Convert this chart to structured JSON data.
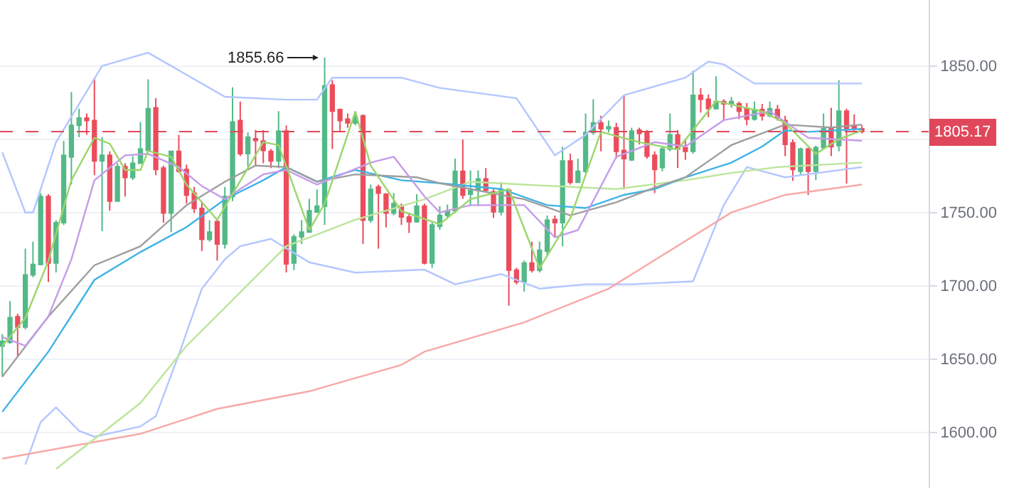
{
  "chart_data": {
    "type": "candlestick",
    "categories": [
      null,
      null,
      null,
      null,
      null,
      null,
      null,
      null,
      null,
      null,
      null,
      null,
      null,
      null,
      null,
      null,
      null,
      null,
      null,
      null,
      null,
      null,
      null,
      null,
      null,
      null,
      null,
      null,
      null,
      null,
      null,
      null,
      null,
      null,
      null,
      null,
      null,
      null,
      null,
      null,
      null,
      null,
      null,
      null,
      null,
      null,
      null,
      null,
      null,
      null,
      null,
      null,
      null,
      null,
      null,
      null,
      null,
      null,
      null,
      null,
      null,
      null,
      null,
      null,
      null,
      null,
      null,
      null,
      null,
      null,
      null,
      null,
      null,
      null,
      null,
      null,
      null,
      null,
      null,
      null,
      null,
      null,
      null,
      null,
      null,
      null,
      null,
      null,
      null,
      null,
      null,
      null,
      null,
      null,
      null,
      null,
      null,
      null,
      null,
      null,
      null,
      null,
      null,
      null,
      null,
      null,
      null,
      null,
      null,
      null,
      null,
      null,
      null
    ],
    "ohlc": [
      [
        1658.8,
        1667,
        1637.8,
        1662.1
      ],
      [
        1661.4,
        1689.6,
        1660.5,
        1678.3
      ],
      [
        1678.9,
        1680.9,
        1651.7,
        1671.8
      ],
      [
        1671.8,
        1725.3,
        1670.2,
        1707.4
      ],
      [
        1707.4,
        1730.1,
        1705.8,
        1714.6
      ],
      [
        1714.6,
        1763.2,
        1714,
        1760.9
      ],
      [
        1760.9,
        1762.5,
        1702.6,
        1715.5
      ],
      [
        1715.5,
        1744.7,
        1709.1,
        1743.1
      ],
      [
        1743.1,
        1798.8,
        1741.5,
        1789.1
      ],
      [
        1787.8,
        1832.2,
        1769,
        1809.5
      ],
      [
        1809.5,
        1820.8,
        1801.4,
        1814.4
      ],
      [
        1814.4,
        1817.6,
        1803,
        1812.7
      ],
      [
        1812.7,
        1841.9,
        1775.5,
        1785.2
      ],
      [
        1785.2,
        1801.4,
        1737.2,
        1789.1
      ],
      [
        1789.1,
        1791.7,
        1751.2,
        1757.7
      ],
      [
        1757.7,
        1783.6,
        1757.7,
        1781.3
      ],
      [
        1781.3,
        1783.6,
        1760.9,
        1773.9
      ],
      [
        1773.9,
        1788.4,
        1772.2,
        1783.6
      ],
      [
        1783.6,
        1811.8,
        1783.6,
        1793.3
      ],
      [
        1792.3,
        1840.9,
        1791.7,
        1820.8
      ],
      [
        1821.5,
        1828,
        1775.5,
        1779.4
      ],
      [
        1780.3,
        1782,
        1743.1,
        1749.6
      ],
      [
        1749.6,
        1791.7,
        1736.6,
        1791.7
      ],
      [
        1791.7,
        1803,
        1777.1,
        1778.1
      ],
      [
        1779.4,
        1782.6,
        1756,
        1761.9
      ],
      [
        1763.2,
        1767.4,
        1749.6,
        1752.8
      ],
      [
        1752.8,
        1757.7,
        1723.6,
        1731.7
      ],
      [
        1731.7,
        1744.7,
        1730.1,
        1736.6
      ],
      [
        1743.8,
        1746,
        1717.2,
        1728.5
      ],
      [
        1728.5,
        1767.4,
        1725.3,
        1760.9
      ],
      [
        1760.9,
        1835.4,
        1757.7,
        1811.8
      ],
      [
        1812.7,
        1825.7,
        1788.4,
        1790.1
      ],
      [
        1790.1,
        1804.6,
        1781.3,
        1801.4
      ],
      [
        1800.4,
        1806.3,
        1782,
        1799.1
      ],
      [
        1798.8,
        1806.3,
        1783.6,
        1792.3
      ],
      [
        1791.7,
        1793.3,
        1780.3,
        1785.2
      ],
      [
        1785.2,
        1819.2,
        1780.3,
        1805.6
      ],
      [
        1805.6,
        1809.5,
        1709.1,
        1714.9
      ],
      [
        1715.5,
        1735,
        1710.7,
        1733.4
      ],
      [
        1733.4,
        1744.7,
        1728.5,
        1736.6
      ],
      [
        1736.6,
        1759.3,
        1736.6,
        1751.2
      ],
      [
        1750.4,
        1765.8,
        1749.6,
        1754.4
      ],
      [
        1754.4,
        1855.66,
        1741.5,
        1836.4
      ],
      [
        1837,
        1840.3,
        1793.3,
        1819.2
      ],
      [
        1820.2,
        1820.8,
        1804.6,
        1812.7
      ],
      [
        1813.7,
        1817.6,
        1807.9,
        1811.1
      ],
      [
        1811.1,
        1819.2,
        1809.5,
        1815
      ],
      [
        1816,
        1817,
        1728.5,
        1744.7
      ],
      [
        1744.7,
        1769,
        1743.1,
        1765.8
      ],
      [
        1767.4,
        1769,
        1725.3,
        1763.2
      ],
      [
        1762.5,
        1763.2,
        1739.8,
        1749.6
      ],
      [
        1749.6,
        1763.2,
        1748,
        1756
      ],
      [
        1754.4,
        1756,
        1741.5,
        1747
      ],
      [
        1747,
        1749.6,
        1736,
        1743.7
      ],
      [
        1743.7,
        1762.5,
        1743.1,
        1754.4
      ],
      [
        1754.4,
        1756,
        1714.6,
        1715.5
      ],
      [
        1715.5,
        1743.1,
        1712.3,
        1741.5
      ],
      [
        1740.5,
        1754.4,
        1738.2,
        1748
      ],
      [
        1748,
        1755.4,
        1746.3,
        1751.2
      ],
      [
        1751.2,
        1786.8,
        1749.6,
        1778.1
      ],
      [
        1778.1,
        1799.8,
        1759.3,
        1761.9
      ],
      [
        1762.5,
        1778.8,
        1754.4,
        1765.1
      ],
      [
        1765.1,
        1778.8,
        1754.4,
        1772.9
      ],
      [
        1772.9,
        1780.3,
        1764.1,
        1765.1
      ],
      [
        1764.1,
        1765.8,
        1746.3,
        1750.5
      ],
      [
        1750.5,
        1770.6,
        1748,
        1765.8
      ],
      [
        1765.1,
        1765.8,
        1686.4,
        1710.7
      ],
      [
        1710.7,
        1712.3,
        1701,
        1702.6
      ],
      [
        1702.6,
        1717.2,
        1696.1,
        1715.5
      ],
      [
        1715.5,
        1730.1,
        1709.1,
        1710.7
      ],
      [
        1710.7,
        1730.1,
        1709.1,
        1724.3
      ],
      [
        1723.6,
        1747.9,
        1720.4,
        1744.7
      ],
      [
        1745.3,
        1747.9,
        1733.4,
        1743.1
      ],
      [
        1743.1,
        1794.9,
        1726.9,
        1785.2
      ],
      [
        1785.2,
        1790.1,
        1769,
        1770.6
      ],
      [
        1770.6,
        1786.8,
        1770.6,
        1778.1
      ],
      [
        1778.1,
        1817.6,
        1777.1,
        1804.6
      ],
      [
        1804.6,
        1827.3,
        1803,
        1811.1
      ],
      [
        1811.1,
        1816,
        1791.7,
        1807.2
      ],
      [
        1807.2,
        1812.7,
        1804.6,
        1808.5
      ],
      [
        1807.9,
        1811.1,
        1786.8,
        1791.7
      ],
      [
        1792.3,
        1829.9,
        1765.8,
        1786.8
      ],
      [
        1785.9,
        1807.9,
        1785.2,
        1805.6
      ],
      [
        1806.3,
        1807.9,
        1796.5,
        1804
      ],
      [
        1804.6,
        1806.3,
        1786.8,
        1788.4
      ],
      [
        1789.1,
        1791.7,
        1763.2,
        1779.4
      ],
      [
        1780.7,
        1794.9,
        1778.1,
        1793.3
      ],
      [
        1793.3,
        1817.6,
        1791.7,
        1803
      ],
      [
        1803,
        1806.3,
        1780.3,
        1793.3
      ],
      [
        1794.3,
        1799.8,
        1785.9,
        1791.7
      ],
      [
        1791.7,
        1846.8,
        1790.1,
        1829.9
      ],
      [
        1829.9,
        1834.8,
        1818.2,
        1827.3
      ],
      [
        1827.3,
        1830.6,
        1815,
        1820.8
      ],
      [
        1820.8,
        1842.9,
        1820.2,
        1825.7
      ],
      [
        1825.7,
        1827.3,
        1812.7,
        1824.1
      ],
      [
        1824.1,
        1828.9,
        1821.5,
        1825.7
      ],
      [
        1824.1,
        1825.7,
        1813.7,
        1819.2
      ],
      [
        1820.8,
        1824.7,
        1809.5,
        1813.7
      ],
      [
        1813.7,
        1825.7,
        1812.7,
        1820.2
      ],
      [
        1820.2,
        1824.1,
        1812.7,
        1816
      ],
      [
        1816,
        1825.7,
        1815,
        1820.8
      ],
      [
        1820.2,
        1823.4,
        1812.7,
        1814.4
      ],
      [
        1812.7,
        1816,
        1788.4,
        1796.5
      ],
      [
        1797.5,
        1799.8,
        1771.6,
        1779.4
      ],
      [
        1778.1,
        1794.3,
        1776.1,
        1793.3
      ],
      [
        1793.3,
        1794.3,
        1761.9,
        1778.1
      ],
      [
        1778.1,
        1795.6,
        1772.2,
        1794.3
      ],
      [
        1794.3,
        1817.6,
        1793.3,
        1807.2
      ],
      [
        1807.2,
        1821.5,
        1788.4,
        1794.9
      ],
      [
        1795.6,
        1840.3,
        1791.7,
        1819.2
      ],
      [
        1819.2,
        1820.8,
        1769.7,
        1807.2
      ],
      [
        1809.5,
        1817,
        1804.6,
        1807.2
      ],
      [
        1807.2,
        1809.5,
        1804,
        1805.17
      ]
    ],
    "colors": [
      "#53b987",
      "#53b987",
      "#eb4d5c",
      "#53b987",
      "#53b987",
      "#53b987",
      "#eb4d5c",
      "#53b987",
      "#53b987",
      "#53b987",
      "#53b987",
      "#eb4d5c",
      "#eb4d5c",
      "#53b987",
      "#eb4d5c",
      "#53b987",
      "#eb4d5c",
      "#53b987",
      "#53b987",
      "#53b987",
      "#eb4d5c",
      "#eb4d5c",
      "#53b987",
      "#eb4d5c",
      "#eb4d5c",
      "#eb4d5c",
      "#eb4d5c",
      "#53b987",
      "#eb4d5c",
      "#53b987",
      "#53b987",
      "#eb4d5c",
      "#53b987",
      "#eb4d5c",
      "#eb4d5c",
      "#eb4d5c",
      "#53b987",
      "#eb4d5c",
      "#53b987",
      "#53b987",
      "#53b987",
      "#53b987",
      "#53b987",
      "#eb4d5c",
      "#eb4d5c",
      "#eb4d5c",
      "#53b987",
      "#eb4d5c",
      "#53b987",
      "#eb4d5c",
      "#eb4d5c",
      "#53b987",
      "#eb4d5c",
      "#eb4d5c",
      "#53b987",
      "#eb4d5c",
      "#53b987",
      "#53b987",
      "#53b987",
      "#53b987",
      "#eb4d5c",
      "#53b987",
      "#53b987",
      "#eb4d5c",
      "#eb4d5c",
      "#53b987",
      "#eb4d5c",
      "#eb4d5c",
      "#53b987",
      "#eb4d5c",
      "#53b987",
      "#53b987",
      "#eb4d5c",
      "#53b987",
      "#eb4d5c",
      "#53b987",
      "#53b987",
      "#53b987",
      "#eb4d5c",
      "#53b987",
      "#eb4d5c",
      "#eb4d5c",
      "#53b987",
      "#eb4d5c",
      "#eb4d5c",
      "#eb4d5c",
      "#53b987",
      "#53b987",
      "#eb4d5c",
      "#eb4d5c",
      "#53b987",
      "#eb4d5c",
      "#eb4d5c",
      "#53b987",
      "#eb4d5c",
      "#53b987",
      "#eb4d5c",
      "#eb4d5c",
      "#53b987",
      "#eb4d5c",
      "#53b987",
      "#eb4d5c",
      "#eb4d5c",
      "#eb4d5c",
      "#53b987",
      "#eb4d5c",
      "#53b987",
      "#53b987",
      "#eb4d5c",
      "#53b987",
      "#eb4d5c",
      "#eb4d5c",
      "#eb4d5c"
    ],
    "series": [
      {
        "type": "line",
        "color": "#b3c6ff",
        "values": [
          1791,
          null,
          null,
          1750,
          1750,
          null,
          null,
          1798,
          null,
          null,
          null,
          null,
          null,
          1850,
          null,
          null,
          null,
          null,
          null,
          1859,
          null,
          null,
          null,
          null,
          null,
          null,
          null,
          null,
          null,
          1829,
          null,
          null,
          null,
          null,
          null,
          null,
          null,
          1827,
          null,
          null,
          null,
          1827,
          null,
          1842,
          null,
          null,
          null,
          null,
          null,
          null,
          null,
          null,
          1842,
          null,
          null,
          null,
          null,
          1835,
          null,
          null,
          null,
          null,
          null,
          null,
          null,
          null,
          null,
          1828,
          null,
          null,
          null,
          null,
          1789,
          null,
          null,
          null,
          1803,
          null,
          null,
          null,
          null,
          1830,
          null,
          null,
          null,
          null,
          null,
          null,
          null,
          1842,
          null,
          null,
          1853,
          null,
          1851,
          null,
          null,
          null,
          1838,
          null,
          null,
          null,
          null,
          null,
          null,
          null,
          null,
          null,
          null,
          null,
          null,
          null,
          1838
        ]
      },
      {
        "type": "line",
        "color": "#b3c6ff",
        "values": [
          null,
          null,
          null,
          1578,
          null,
          1607,
          null,
          1617,
          null,
          null,
          1601,
          null,
          1597,
          null,
          null,
          null,
          null,
          null,
          1604,
          null,
          1611,
          null,
          null,
          1653,
          null,
          null,
          1698,
          null,
          null,
          1718,
          null,
          1727,
          null,
          null,
          null,
          1732,
          null,
          null,
          null,
          null,
          1716,
          null,
          null,
          null,
          null,
          null,
          1709,
          null,
          null,
          null,
          null,
          null,
          null,
          null,
          null,
          1711,
          null,
          null,
          null,
          1701,
          null,
          null,
          null,
          null,
          null,
          1708,
          null,
          null,
          null,
          null,
          1698,
          null,
          null,
          null,
          null,
          null,
          1701,
          null,
          null,
          null,
          null,
          null,
          1701,
          null,
          null,
          null,
          null,
          null,
          null,
          null,
          1703,
          null,
          null,
          null,
          1755,
          null,
          null,
          1781,
          null,
          null,
          null,
          null,
          1774,
          null,
          null,
          null,
          null,
          null,
          null,
          null,
          null,
          null,
          1781
        ]
      },
      {
        "type": "line",
        "color": "#f7a9a7",
        "values": [
          1582,
          null,
          null,
          null,
          null,
          null,
          null,
          null,
          null,
          null,
          null,
          null,
          null,
          null,
          null,
          null,
          null,
          null,
          1599,
          null,
          null,
          null,
          null,
          null,
          null,
          null,
          null,
          null,
          1616,
          null,
          null,
          null,
          null,
          null,
          null,
          null,
          null,
          null,
          null,
          null,
          1628,
          null,
          null,
          null,
          null,
          null,
          null,
          null,
          null,
          null,
          null,
          null,
          1646,
          null,
          null,
          1655,
          null,
          null,
          null,
          null,
          null,
          null,
          null,
          null,
          null,
          null,
          null,
          null,
          1675,
          null,
          null,
          null,
          null,
          null,
          null,
          null,
          null,
          null,
          null,
          1698,
          null,
          null,
          null,
          1711,
          null,
          null,
          null,
          null,
          null,
          null,
          null,
          null,
          null,
          null,
          null,
          1750,
          null,
          null,
          null,
          null,
          null,
          null,
          1762,
          null,
          null,
          null,
          null,
          null,
          null,
          null,
          null,
          null,
          1769
        ]
      },
      {
        "type": "line",
        "color": "#bde59a",
        "values": [
          null,
          null,
          null,
          null,
          null,
          null,
          null,
          1575,
          null,
          null,
          null,
          null,
          null,
          null,
          null,
          null,
          null,
          null,
          1620,
          null,
          null,
          null,
          null,
          null,
          1659,
          null,
          null,
          null,
          null,
          1685,
          null,
          null,
          null,
          null,
          null,
          null,
          null,
          1727,
          null,
          null,
          null,
          null,
          null,
          null,
          null,
          null,
          1745,
          null,
          null,
          null,
          null,
          null,
          null,
          null,
          null,
          1759,
          null,
          null,
          null,
          null,
          null,
          1771,
          null,
          null,
          null,
          null,
          null,
          null,
          1769,
          null,
          null,
          null,
          null,
          null,
          null,
          null,
          null,
          null,
          null,
          null,
          1766,
          null,
          null,
          null,
          null,
          null,
          null,
          null,
          null,
          1772,
          null,
          null,
          null,
          null,
          null,
          1777,
          null,
          null,
          null,
          null,
          null,
          1781,
          null,
          null,
          null,
          null,
          null,
          null,
          null,
          null,
          null,
          null,
          1784
        ]
      },
      {
        "type": "line",
        "color": "#3fb3e6",
        "values": [
          1614,
          null,
          null,
          null,
          null,
          null,
          1655,
          null,
          null,
          null,
          null,
          null,
          1704,
          null,
          null,
          null,
          null,
          null,
          1723,
          null,
          null,
          null,
          null,
          null,
          1740,
          null,
          null,
          null,
          null,
          1759,
          null,
          null,
          null,
          null,
          1772,
          null,
          null,
          1781,
          null,
          null,
          null,
          1771,
          null,
          null,
          null,
          null,
          1779,
          null,
          null,
          null,
          null,
          null,
          1772,
          null,
          null,
          null,
          null,
          1770,
          null,
          null,
          null,
          null,
          null,
          null,
          null,
          1766,
          null,
          null,
          null,
          null,
          null,
          1755,
          null,
          null,
          null,
          null,
          1753,
          null,
          null,
          null,
          null,
          1762,
          null,
          null,
          null,
          1766,
          null,
          null,
          null,
          1774,
          null,
          null,
          null,
          null,
          null,
          1784,
          null,
          null,
          null,
          1795,
          null,
          null,
          1806,
          null,
          null,
          1805,
          null,
          null,
          null,
          null,
          null,
          null,
          1807
        ]
      },
      {
        "type": "line",
        "color": "#9e9e9e",
        "values": [
          1638,
          null,
          null,
          null,
          null,
          null,
          1679,
          null,
          null,
          null,
          null,
          null,
          1714,
          null,
          null,
          null,
          null,
          null,
          1727,
          null,
          null,
          null,
          null,
          null,
          1755,
          null,
          null,
          null,
          null,
          1771,
          null,
          null,
          null,
          1782,
          null,
          null,
          null,
          1781,
          null,
          null,
          null,
          1771,
          null,
          null,
          null,
          null,
          1776,
          null,
          null,
          null,
          null,
          null,
          null,
          null,
          1774,
          null,
          null,
          1770,
          null,
          null,
          null,
          1766,
          null,
          null,
          null,
          null,
          null,
          null,
          1759,
          null,
          null,
          null,
          null,
          null,
          1748,
          null,
          null,
          null,
          null,
          null,
          1757,
          null,
          null,
          null,
          null,
          1767,
          null,
          null,
          null,
          1774,
          null,
          null,
          null,
          null,
          null,
          1796,
          null,
          null,
          null,
          null,
          null,
          null,
          1810,
          null,
          null,
          null,
          null,
          null,
          1808,
          null,
          null,
          null,
          1810
        ]
      },
      {
        "type": "line",
        "color": "#c59ce9",
        "values": [
          1665,
          null,
          null,
          1659,
          null,
          null,
          1679,
          null,
          null,
          1718,
          null,
          null,
          1772,
          null,
          null,
          null,
          1789,
          null,
          null,
          1790,
          null,
          null,
          null,
          1781,
          null,
          null,
          1768,
          null,
          null,
          1759,
          null,
          1766,
          null,
          null,
          1776,
          null,
          null,
          1779,
          null,
          null,
          null,
          1769,
          null,
          null,
          null,
          null,
          null,
          null,
          1784,
          null,
          null,
          1788,
          null,
          null,
          null,
          1761,
          null,
          1750,
          null,
          null,
          null,
          1755,
          null,
          null,
          null,
          null,
          null,
          null,
          1755,
          null,
          null,
          null,
          1733,
          null,
          null,
          1738,
          null,
          null,
          null,
          null,
          1788,
          null,
          null,
          null,
          null,
          1798,
          null,
          null,
          null,
          1795,
          null,
          null,
          null,
          null,
          1813,
          null,
          null,
          null,
          null,
          null,
          1819,
          null,
          null,
          null,
          null,
          1801,
          null,
          null,
          null,
          null,
          null,
          null,
          1799
        ]
      },
      {
        "type": "line",
        "color": "#9ad66a",
        "values": [
          1659,
          null,
          null,
          1678,
          null,
          null,
          1717,
          null,
          null,
          1772,
          null,
          null,
          1801,
          null,
          1797,
          null,
          1779,
          null,
          1779,
          1792,
          null,
          null,
          1788,
          null,
          1769,
          null,
          null,
          null,
          1745,
          null,
          null,
          null,
          null,
          null,
          1798,
          null,
          1796,
          null,
          null,
          null,
          1738,
          null,
          1756,
          null,
          null,
          null,
          1819,
          null,
          1782,
          null,
          null,
          null,
          1751,
          null,
          null,
          null,
          null,
          1742,
          null,
          null,
          null,
          1759,
          null,
          null,
          null,
          null,
          1766,
          null,
          null,
          null,
          1712,
          null,
          null,
          null,
          1746,
          null,
          null,
          null,
          1805,
          null,
          null,
          null,
          null,
          1798,
          null,
          null,
          null,
          null,
          1793,
          null,
          null,
          null,
          null,
          1826,
          null,
          null,
          null,
          null,
          null,
          1819,
          null,
          null,
          1811,
          null,
          null,
          null,
          1790,
          null,
          null,
          1800,
          null,
          null,
          1806
        ]
      }
    ],
    "ylim": [
      1562,
      1895
    ],
    "yticks": [
      {
        "value": 1600,
        "label": "1600.00"
      },
      {
        "value": 1650,
        "label": "1650.00"
      },
      {
        "value": 1700,
        "label": "1700.00"
      },
      {
        "value": 1750,
        "label": "1750.00"
      },
      {
        "value": 1800,
        "label": null
      },
      {
        "value": 1850,
        "label": "1850.00"
      }
    ],
    "tick_labels": "y",
    "grid": "y",
    "ref_lines": [
      {
        "axis": "y",
        "value": 1805.17,
        "label": "1805.17",
        "color": "#e0475a",
        "line_style": "dashed"
      }
    ],
    "annotations": [
      "1855.66"
    ]
  }
}
